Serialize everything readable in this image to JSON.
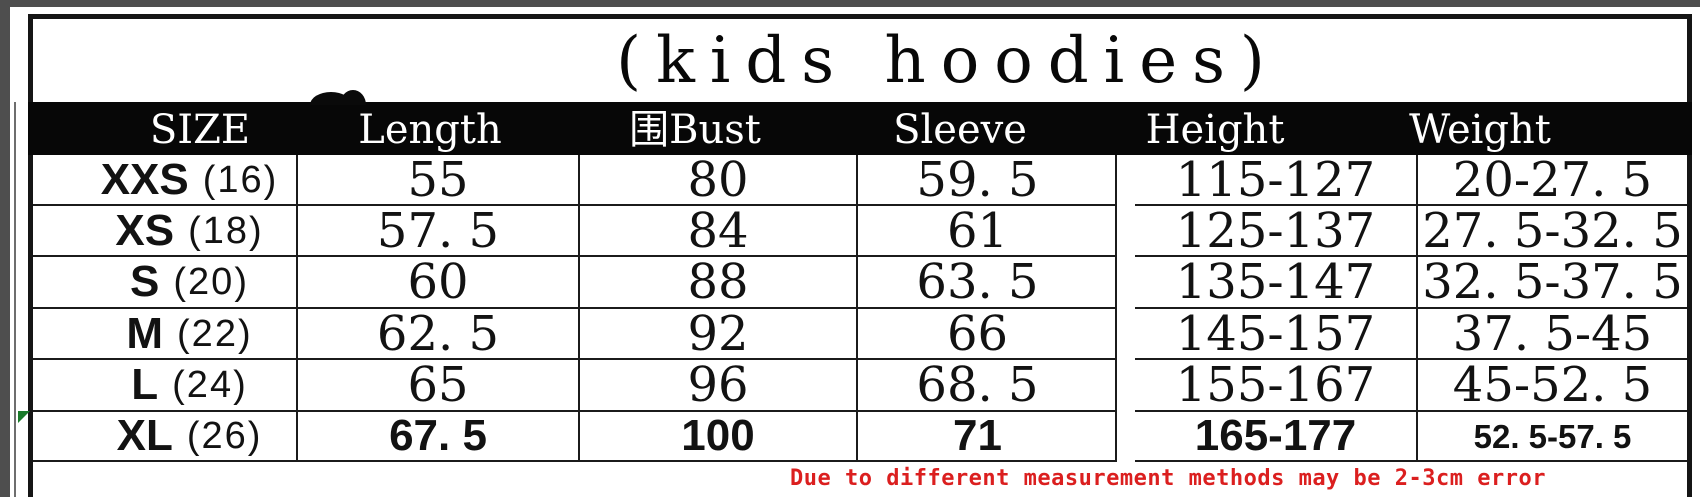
{
  "title": "(kids hoodies)",
  "columns": [
    "SIZE",
    "Length",
    "围Bust",
    "Sleeve",
    "Height",
    "Weight"
  ],
  "rows": [
    {
      "size": "XXS",
      "size_num": "(16)",
      "length": "55",
      "bust": "80",
      "sleeve": "59. 5",
      "height": "115-127",
      "weight": "20-27. 5"
    },
    {
      "size": "XS",
      "size_num": "(18)",
      "length": "57. 5",
      "bust": "84",
      "sleeve": "61",
      "height": "125-137",
      "weight": "27. 5-32. 5"
    },
    {
      "size": "S",
      "size_num": "(20)",
      "length": "60",
      "bust": "88",
      "sleeve": "63. 5",
      "height": "135-147",
      "weight": "32. 5-37. 5"
    },
    {
      "size": "M",
      "size_num": "(22)",
      "length": "62. 5",
      "bust": "92",
      "sleeve": "66",
      "height": "145-157",
      "weight": "37. 5-45"
    },
    {
      "size": "L",
      "size_num": "(24)",
      "length": "65",
      "bust": "96",
      "sleeve": "68. 5",
      "height": "155-167",
      "weight": "45-52. 5"
    },
    {
      "size": "XL",
      "size_num": "(26)",
      "length": "67. 5",
      "bust": "100",
      "sleeve": "71",
      "height": "165-177",
      "weight": "52. 5-57. 5"
    }
  ],
  "note": "Due to different measurement methods may be 2-3cm error",
  "colors": {
    "note_red": "#db1f1f",
    "header_bar": "#070707",
    "scan_edge": "#4e4e4e",
    "artifact_green": "#1a7a2a"
  },
  "chart_data": {
    "type": "table",
    "title": "(kids hoodies)",
    "columns": [
      "SIZE",
      "Length",
      "围Bust",
      "Sleeve",
      "Height",
      "Weight"
    ],
    "rows": [
      [
        "XXS (16)",
        55,
        80,
        59.5,
        "115-127",
        "20-27.5"
      ],
      [
        "XS (18)",
        57.5,
        84,
        61,
        "125-137",
        "27.5-32.5"
      ],
      [
        "S (20)",
        60,
        88,
        63.5,
        "135-147",
        "32.5-37.5"
      ],
      [
        "M (22)",
        62.5,
        92,
        66,
        "145-157",
        "37.5-45"
      ],
      [
        "L (24)",
        65,
        96,
        68.5,
        "155-167",
        "45-52.5"
      ],
      [
        "XL (26)",
        67.5,
        100,
        71,
        "165-177",
        "52.5-57.5"
      ]
    ]
  }
}
